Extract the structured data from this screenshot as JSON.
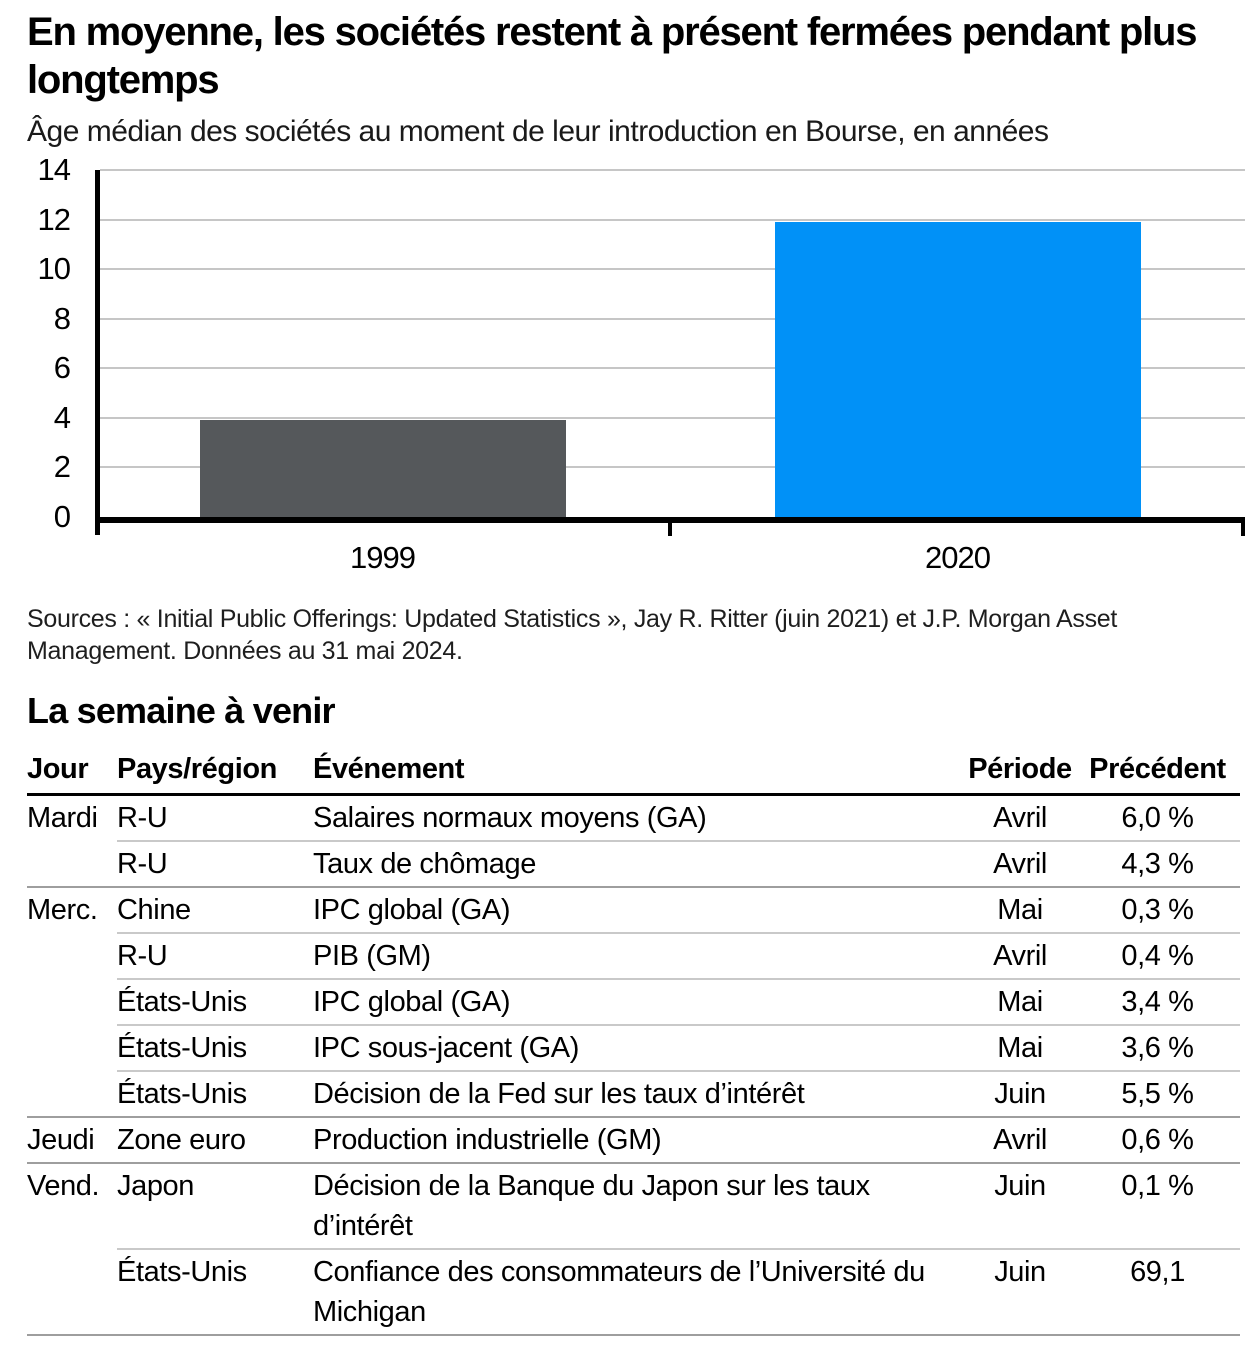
{
  "header": {
    "title": "En moyenne, les sociétés restent à présent fermées pendant plus longtemps",
    "subtitle": "Âge médian des sociétés au moment de leur introduction en Bourse, en années"
  },
  "chart_data": {
    "type": "bar",
    "categories": [
      "1999",
      "2020"
    ],
    "values": [
      3.9,
      11.9
    ],
    "title": "Âge médian des sociétés au moment de leur introduction en Bourse, en années",
    "xlabel": "",
    "ylabel": "",
    "ylim": [
      0,
      14
    ],
    "yticks": [
      0,
      2,
      4,
      6,
      8,
      10,
      12,
      14
    ],
    "bar_colors": [
      "#55585B",
      "#0191F7"
    ],
    "gridlines": "horizontal",
    "legend": "none"
  },
  "sources": "Sources : « Initial Public Offerings: Updated Statistics », Jay R. Ritter (juin 2021) et J.P. Morgan Asset Management. Données au 31 mai 2024.",
  "week": {
    "heading": "La semaine à venir",
    "columns": [
      "Jour",
      "Pays/région",
      "Événement",
      "Période",
      "Précédent"
    ],
    "rows": [
      {
        "day": "Mardi",
        "region": "R-U",
        "event": "Salaires normaux moyens (GA)",
        "period": "Avril",
        "previous": "6,0 %",
        "separator": "none"
      },
      {
        "day": "",
        "region": "R-U",
        "event": "Taux de chômage",
        "period": "Avril",
        "previous": "4,3 %",
        "separator": "indent"
      },
      {
        "day": "Merc.",
        "region": "Chine",
        "event": "IPC global (GA)",
        "period": "Mai",
        "previous": "0,3 %",
        "separator": "full"
      },
      {
        "day": "",
        "region": "R-U",
        "event": "PIB (GM)",
        "period": "Avril",
        "previous": "0,4 %",
        "separator": "indent"
      },
      {
        "day": "",
        "region": "États-Unis",
        "event": "IPC global (GA)",
        "period": "Mai",
        "previous": "3,4 %",
        "separator": "indent"
      },
      {
        "day": "",
        "region": "États-Unis",
        "event": "IPC sous-jacent (GA)",
        "period": "Mai",
        "previous": "3,6 %",
        "separator": "indent"
      },
      {
        "day": "",
        "region": "États-Unis",
        "event": "Décision de la Fed sur les taux d’intérêt",
        "period": "Juin",
        "previous": "5,5 %",
        "separator": "indent"
      },
      {
        "day": "Jeudi",
        "region": "Zone euro",
        "event": "Production industrielle (GM)",
        "period": "Avril",
        "previous": "0,6 %",
        "separator": "full"
      },
      {
        "day": "Vend.",
        "region": "Japon",
        "event": "Décision de la Banque du Japon sur les taux d’intérêt",
        "period": "Juin",
        "previous": "0,1 %",
        "separator": "full"
      },
      {
        "day": "",
        "region": "États-Unis",
        "event": "Confiance des consommateurs de l’Université du Michigan",
        "period": "Juin",
        "previous": "69,1",
        "separator": "indent"
      }
    ]
  },
  "colors": {
    "bar_1999": "#55585B",
    "bar_2020": "#0191F7",
    "gridline": "#C6C6C6",
    "axis": "#000000",
    "divider_full": "#9E9E9E",
    "divider_indent": "#C9C9C9"
  }
}
